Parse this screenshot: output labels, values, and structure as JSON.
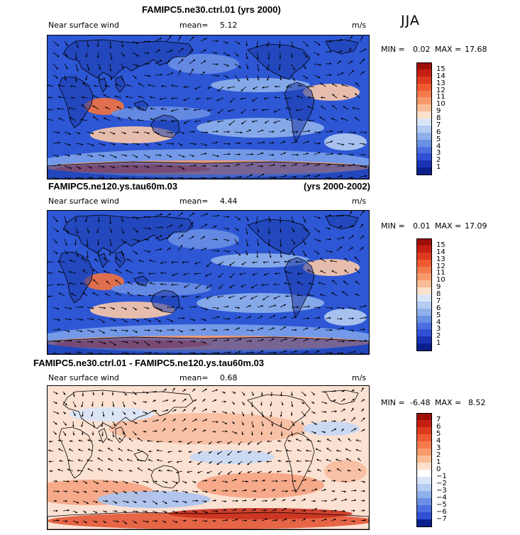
{
  "season": "JJA",
  "panels": [
    {
      "title": "FAMIPC5.ne30.ctrl.01 (yrs 2000)",
      "title_right": "",
      "variable": "Near surface wind",
      "mean_label": "mean=",
      "mean_value": "5.12",
      "units": "m/s",
      "min_label": "MIN =",
      "min_value": "0.02",
      "max_label": "MAX =",
      "max_value": "17.68",
      "levels": [
        "15",
        "14",
        "13",
        "12",
        "11",
        "10",
        "9",
        "8",
        "7",
        "6",
        "5",
        "4",
        "3",
        "2",
        "1"
      ],
      "colors": [
        "#9e0f0a",
        "#c51f13",
        "#de3a1e",
        "#ee5a31",
        "#f57a4b",
        "#f99a6c",
        "#fbbd95",
        "#fde0cc",
        "#d8e6f8",
        "#b5cdf2",
        "#8fb1eb",
        "#6a8fe4",
        "#4a6fdf",
        "#2f50d3",
        "#1a34b3",
        "#0b1f8c"
      ],
      "chart_data": {
        "type": "heatmap",
        "field": "Near surface wind speed with vectors",
        "units": "m/s",
        "mean": 5.12,
        "min": 0.02,
        "max": 17.68,
        "contour_levels": [
          1,
          2,
          3,
          4,
          5,
          6,
          7,
          8,
          9,
          10,
          11,
          12,
          13,
          14,
          15
        ]
      }
    },
    {
      "title": "FAMIPC5.ne120.ys.tau60m.03",
      "title_right": "(yrs 2000-2002)",
      "variable": "Near surface wind",
      "mean_label": "mean=",
      "mean_value": "4.44",
      "units": "m/s",
      "min_label": "MIN =",
      "min_value": "0.01",
      "max_label": "MAX =",
      "max_value": "17.09",
      "levels": [
        "15",
        "14",
        "13",
        "12",
        "11",
        "10",
        "9",
        "8",
        "7",
        "6",
        "5",
        "4",
        "3",
        "2",
        "1"
      ],
      "colors": [
        "#9e0f0a",
        "#c51f13",
        "#de3a1e",
        "#ee5a31",
        "#f57a4b",
        "#f99a6c",
        "#fbbd95",
        "#fde0cc",
        "#d8e6f8",
        "#b5cdf2",
        "#8fb1eb",
        "#6a8fe4",
        "#4a6fdf",
        "#2f50d3",
        "#1a34b3",
        "#0b1f8c"
      ],
      "chart_data": {
        "type": "heatmap",
        "field": "Near surface wind speed with vectors",
        "units": "m/s",
        "mean": 4.44,
        "min": 0.01,
        "max": 17.09,
        "contour_levels": [
          1,
          2,
          3,
          4,
          5,
          6,
          7,
          8,
          9,
          10,
          11,
          12,
          13,
          14,
          15
        ]
      }
    },
    {
      "title": "FAMIPC5.ne30.ctrl.01 - FAMIPC5.ne120.ys.tau60m.03",
      "title_right": "",
      "variable": "Near surface wind",
      "mean_label": "mean=",
      "mean_value": "0.68",
      "units": "m/s",
      "min_label": "MIN =",
      "min_value": "-6.48",
      "max_label": "MAX =",
      "max_value": "8.52",
      "levels": [
        "7",
        "6",
        "5",
        "4",
        "3",
        "2",
        "1",
        "0",
        "−1",
        "−2",
        "−3",
        "−4",
        "−5",
        "−6",
        "−7"
      ],
      "colors": [
        "#9e0f0a",
        "#c51f13",
        "#de3a1e",
        "#ee5a31",
        "#f57a4b",
        "#f99a6c",
        "#fbbd95",
        "#fde0cc",
        "#ffffff",
        "#d8e6f8",
        "#b5cdf2",
        "#8fb1eb",
        "#6a8fe4",
        "#4a6fdf",
        "#2f50d3",
        "#0b1f8c"
      ],
      "chart_data": {
        "type": "heatmap",
        "field": "Near surface wind difference with vectors",
        "units": "m/s",
        "mean": 0.68,
        "min": -6.48,
        "max": 8.52,
        "contour_levels": [
          -7,
          -6,
          -5,
          -4,
          -3,
          -2,
          -1,
          0,
          1,
          2,
          3,
          4,
          5,
          6,
          7
        ]
      }
    }
  ]
}
